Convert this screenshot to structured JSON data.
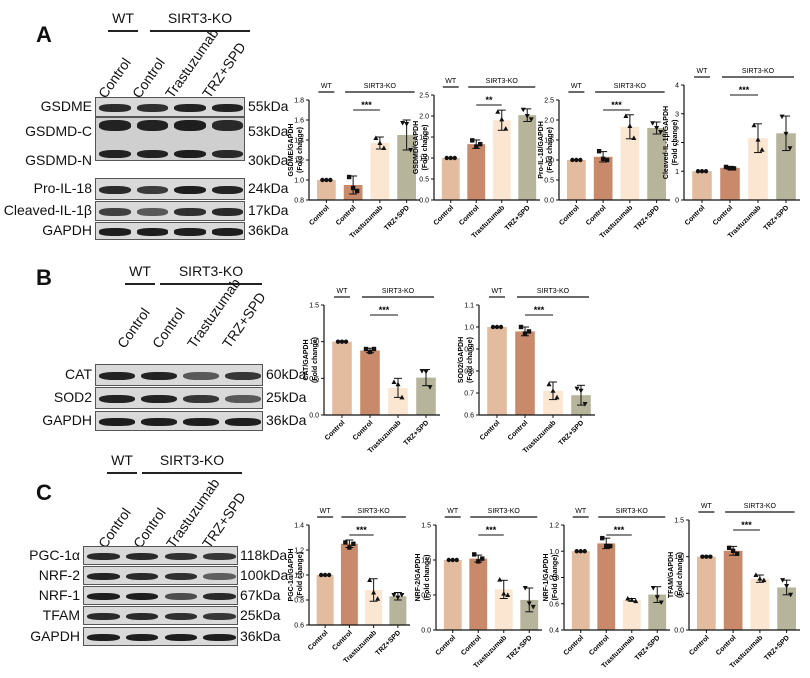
{
  "figure": {
    "panels": [
      {
        "letter": "A",
        "blot": {
          "groups": [
            {
              "label": "WT"
            },
            {
              "label": "SIRT3-KO"
            }
          ],
          "lanes": [
            "Control",
            "Control",
            "Trastuzumab",
            "TRZ+SPD"
          ],
          "rows": [
            {
              "protein": "GSDME",
              "kda": "55kDa"
            },
            {
              "protein": "GSDMD-C",
              "kda": "53kDa"
            },
            {
              "protein": "GSDMD-N",
              "kda": "30kDa"
            },
            {
              "protein": "Pro-IL-18",
              "kda": "24kDa"
            },
            {
              "protein": "Cleaved-IL-1β",
              "kda": "17kDa"
            },
            {
              "protein": "GAPDH",
              "kda": "36kDa"
            }
          ]
        }
      },
      {
        "letter": "B",
        "blot": {
          "groups": [
            {
              "label": "WT"
            },
            {
              "label": "SIRT3-KO"
            }
          ],
          "lanes": [
            "Control",
            "Control",
            "Trastuzumab",
            "TRZ+SPD"
          ],
          "rows": [
            {
              "protein": "CAT",
              "kda": "60kDa"
            },
            {
              "protein": "SOD2",
              "kda": "25kDa"
            },
            {
              "protein": "GAPDH",
              "kda": "36kDa"
            }
          ]
        }
      },
      {
        "letter": "C",
        "blot": {
          "groups": [
            {
              "label": "WT"
            },
            {
              "label": "SIRT3-KO"
            }
          ],
          "lanes": [
            "Control",
            "Control",
            "Trastuzumab",
            "TRZ+SPD"
          ],
          "rows": [
            {
              "protein": "PGC-1α",
              "kda": "118kDa"
            },
            {
              "protein": "NRF-2",
              "kda": "100kDa"
            },
            {
              "protein": "NRF-1",
              "kda": "67kDa"
            },
            {
              "protein": "TFAM",
              "kda": "25kDa"
            },
            {
              "protein": "GAPDH",
              "kda": "36kDa"
            }
          ]
        }
      }
    ],
    "colors": {
      "wt_control": "#e3bca0",
      "ko_control": "#c98a6c",
      "trastuzumab": "#fbe6d2",
      "trz_spd": "#b6b59c",
      "axis": "#111111"
    }
  },
  "chart_data": [
    {
      "panel": "A",
      "type": "bar",
      "ylabel": "GSDME/GAPDH (Fold change)",
      "categories": [
        "Control",
        "Control",
        "Trastuzumab",
        "TRZ+SPD"
      ],
      "groups": {
        "WT": [
          "Control"
        ],
        "SIRT3-KO": [
          "Control",
          "Trastuzumab",
          "TRZ+SPD"
        ]
      },
      "values": [
        1.0,
        0.95,
        1.37,
        1.45
      ],
      "errors": [
        0.0,
        0.09,
        0.06,
        0.15
      ],
      "points": [
        [
          1.0,
          1.0,
          1.0
        ],
        [
          1.03,
          0.92,
          0.89
        ],
        [
          1.42,
          1.37,
          1.32
        ],
        [
          1.57,
          1.56,
          1.3
        ]
      ],
      "ylim": [
        0.8,
        1.8
      ],
      "yticks": [
        0.8,
        1.0,
        1.2,
        1.4,
        1.6,
        1.8
      ],
      "significance": [
        {
          "from": 1,
          "to": 2,
          "label": "***"
        }
      ]
    },
    {
      "panel": "A",
      "type": "bar",
      "ylabel": "GSDMD/GAPDH (Fold change)",
      "categories": [
        "Control",
        "Control",
        "Trastuzumab",
        "TRZ+SPD"
      ],
      "groups": {
        "WT": [
          "Control"
        ],
        "SIRT3-KO": [
          "Control",
          "Trastuzumab",
          "TRZ+SPD"
        ]
      },
      "values": [
        1.0,
        1.33,
        1.9,
        2.02
      ],
      "errors": [
        0.0,
        0.1,
        0.24,
        0.15
      ],
      "points": [
        [
          1.0,
          1.0,
          1.0
        ],
        [
          1.42,
          1.27,
          1.33
        ],
        [
          2.1,
          1.92,
          1.7
        ],
        [
          2.15,
          2.0,
          1.92
        ]
      ],
      "ylim": [
        0.0,
        2.5
      ],
      "yticks": [
        0.0,
        0.5,
        1.0,
        1.5,
        2.0,
        2.5
      ],
      "significance": [
        {
          "from": 1,
          "to": 2,
          "label": "**"
        }
      ]
    },
    {
      "panel": "A",
      "type": "bar",
      "ylabel": "Pro-IL-18/GAPDH (Fold change)",
      "categories": [
        "Control",
        "Control",
        "Trastuzumab",
        "TRZ+SPD"
      ],
      "groups": {
        "WT": [
          "Control"
        ],
        "SIRT3-KO": [
          "Control",
          "Trastuzumab",
          "TRZ+SPD"
        ]
      },
      "values": [
        1.0,
        1.08,
        1.83,
        1.8
      ],
      "errors": [
        0.0,
        0.13,
        0.3,
        0.15
      ],
      "points": [
        [
          1.0,
          1.0,
          1.0
        ],
        [
          1.22,
          1.03,
          1.0
        ],
        [
          2.1,
          1.85,
          1.55
        ],
        [
          1.92,
          1.8,
          1.7
        ]
      ],
      "ylim": [
        0.0,
        2.5
      ],
      "yticks": [
        0.0,
        0.5,
        1.0,
        1.5,
        2.0,
        2.5
      ],
      "significance": [
        {
          "from": 1,
          "to": 2,
          "label": "***"
        }
      ]
    },
    {
      "panel": "A",
      "type": "bar",
      "ylabel": "Cleaved-IL-1β/GAPDH (Fold change)",
      "categories": [
        "Control",
        "Control",
        "Trastuzumab",
        "TRZ+SPD"
      ],
      "groups": {
        "WT": [
          "Control"
        ],
        "SIRT3-KO": [
          "Control",
          "Trastuzumab",
          "TRZ+SPD"
        ]
      },
      "values": [
        1.0,
        1.12,
        2.15,
        2.32
      ],
      "errors": [
        0.0,
        0.05,
        0.5,
        0.6
      ],
      "points": [
        [
          1.0,
          1.0,
          1.0
        ],
        [
          1.15,
          1.1,
          1.1
        ],
        [
          2.6,
          2.1,
          1.75
        ],
        [
          2.9,
          2.3,
          1.8
        ]
      ],
      "ylim": [
        0,
        4
      ],
      "yticks": [
        0,
        1,
        2,
        3,
        4
      ],
      "significance": [
        {
          "from": 1,
          "to": 2,
          "label": "***"
        }
      ]
    },
    {
      "panel": "B",
      "type": "bar",
      "ylabel": "CAT/GAPDH (Fold change)",
      "categories": [
        "Control",
        "Control",
        "Trastuzumab",
        "TRZ+SPD"
      ],
      "groups": {
        "WT": [
          "Control"
        ],
        "SIRT3-KO": [
          "Control",
          "Trastuzumab",
          "TRZ+SPD"
        ]
      },
      "values": [
        1.0,
        0.88,
        0.37,
        0.51
      ],
      "errors": [
        0.0,
        0.03,
        0.13,
        0.11
      ],
      "points": [
        [
          1.0,
          1.0,
          1.0
        ],
        [
          0.9,
          0.86,
          0.9
        ],
        [
          0.45,
          0.42,
          0.24
        ],
        [
          0.6,
          0.59,
          0.38
        ]
      ],
      "ylim": [
        0.0,
        1.5
      ],
      "yticks": [
        0.0,
        0.5,
        1.0,
        1.5
      ],
      "significance": [
        {
          "from": 1,
          "to": 2,
          "label": "***"
        }
      ]
    },
    {
      "panel": "B",
      "type": "bar",
      "ylabel": "SOD2/GAPDH (Fold change)",
      "categories": [
        "Control",
        "Control",
        "Trastuzumab",
        "TRZ+SPD"
      ],
      "groups": {
        "WT": [
          "Control"
        ],
        "SIRT3-KO": [
          "Control",
          "Trastuzumab",
          "TRZ+SPD"
        ]
      },
      "values": [
        1.0,
        0.98,
        0.71,
        0.69
      ],
      "errors": [
        0.0,
        0.02,
        0.04,
        0.045
      ],
      "points": [
        [
          1.0,
          1.0,
          1.0
        ],
        [
          1.0,
          0.97,
          0.98
        ],
        [
          0.74,
          0.71,
          0.68
        ],
        [
          0.72,
          0.71,
          0.65
        ]
      ],
      "ylim": [
        0.6,
        1.1
      ],
      "yticks": [
        0.6,
        0.7,
        0.8,
        0.9,
        1.0,
        1.1
      ],
      "significance": [
        {
          "from": 1,
          "to": 2,
          "label": "***"
        }
      ]
    },
    {
      "panel": "C",
      "type": "bar",
      "ylabel": "PGC-1α/GAPDH (Fold change)",
      "categories": [
        "Control",
        "Control",
        "Trastuzumab",
        "TRZ+SPD"
      ],
      "groups": {
        "WT": [
          "Control"
        ],
        "SIRT3-KO": [
          "Control",
          "Trastuzumab",
          "TRZ+SPD"
        ]
      },
      "values": [
        1.0,
        1.25,
        0.88,
        0.83
      ],
      "errors": [
        0.0,
        0.03,
        0.09,
        0.03
      ],
      "points": [
        [
          1.0,
          1.0,
          1.0
        ],
        [
          1.26,
          1.22,
          1.25
        ],
        [
          0.96,
          0.86,
          0.81
        ],
        [
          0.84,
          0.82,
          0.84
        ]
      ],
      "ylim": [
        0.6,
        1.4
      ],
      "yticks": [
        0.6,
        0.8,
        1.0,
        1.2,
        1.4
      ],
      "significance": [
        {
          "from": 1,
          "to": 2,
          "label": "***"
        }
      ]
    },
    {
      "panel": "C",
      "type": "bar",
      "ylabel": "NRF-2/GAPDH (Fold change)",
      "categories": [
        "Control",
        "Control",
        "Trastuzumab",
        "TRZ+SPD"
      ],
      "groups": {
        "WT": [
          "Control"
        ],
        "SIRT3-KO": [
          "Control",
          "Trastuzumab",
          "TRZ+SPD"
        ]
      },
      "values": [
        1.0,
        1.02,
        0.58,
        0.43
      ],
      "errors": [
        0.0,
        0.05,
        0.13,
        0.17
      ],
      "points": [
        [
          1.0,
          1.0,
          1.0
        ],
        [
          1.08,
          0.98,
          1.02
        ],
        [
          0.72,
          0.52,
          0.5
        ],
        [
          0.6,
          0.38,
          0.33
        ]
      ],
      "ylim": [
        0.0,
        1.5
      ],
      "yticks": [
        0.0,
        0.5,
        1.0,
        1.5
      ],
      "significance": [
        {
          "from": 1,
          "to": 2,
          "label": "***"
        }
      ]
    },
    {
      "panel": "C",
      "type": "bar",
      "ylabel": "NRF-1/GAPDH (Fold change)",
      "categories": [
        "Control",
        "Control",
        "Trastuzumab",
        "TRZ+SPD"
      ],
      "groups": {
        "WT": [
          "Control"
        ],
        "SIRT3-KO": [
          "Control",
          "Trastuzumab",
          "TRZ+SPD"
        ]
      },
      "values": [
        1.0,
        1.06,
        0.63,
        0.67
      ],
      "errors": [
        0.0,
        0.04,
        0.01,
        0.06
      ],
      "points": [
        [
          1.0,
          1.0,
          1.0
        ],
        [
          1.1,
          1.04,
          1.04
        ],
        [
          0.64,
          0.63,
          0.62
        ],
        [
          0.72,
          0.65,
          0.61
        ]
      ],
      "ylim": [
        0.4,
        1.2
      ],
      "yticks": [
        0.4,
        0.6,
        0.8,
        1.0,
        1.2
      ],
      "significance": [
        {
          "from": 1,
          "to": 2,
          "label": "***"
        }
      ]
    },
    {
      "panel": "C",
      "type": "bar",
      "ylabel": "TFAM/GAPDH (Fold change)",
      "categories": [
        "Control",
        "Control",
        "Trastuzumab",
        "TRZ+SPD"
      ],
      "groups": {
        "WT": [
          "Control"
        ],
        "SIRT3-KO": [
          "Control",
          "Trastuzumab",
          "TRZ+SPD"
        ]
      },
      "values": [
        1.0,
        1.08,
        0.7,
        0.58
      ],
      "errors": [
        0.0,
        0.06,
        0.05,
        0.1
      ],
      "points": [
        [
          1.0,
          1.0,
          1.0
        ],
        [
          1.12,
          1.08,
          1.04
        ],
        [
          0.75,
          0.7,
          0.68
        ],
        [
          0.68,
          0.6,
          0.48
        ]
      ],
      "ylim": [
        0.0,
        1.5
      ],
      "yticks": [
        0.0,
        0.5,
        1.0,
        1.5
      ],
      "significance": [
        {
          "from": 1,
          "to": 2,
          "label": "***"
        }
      ]
    }
  ]
}
